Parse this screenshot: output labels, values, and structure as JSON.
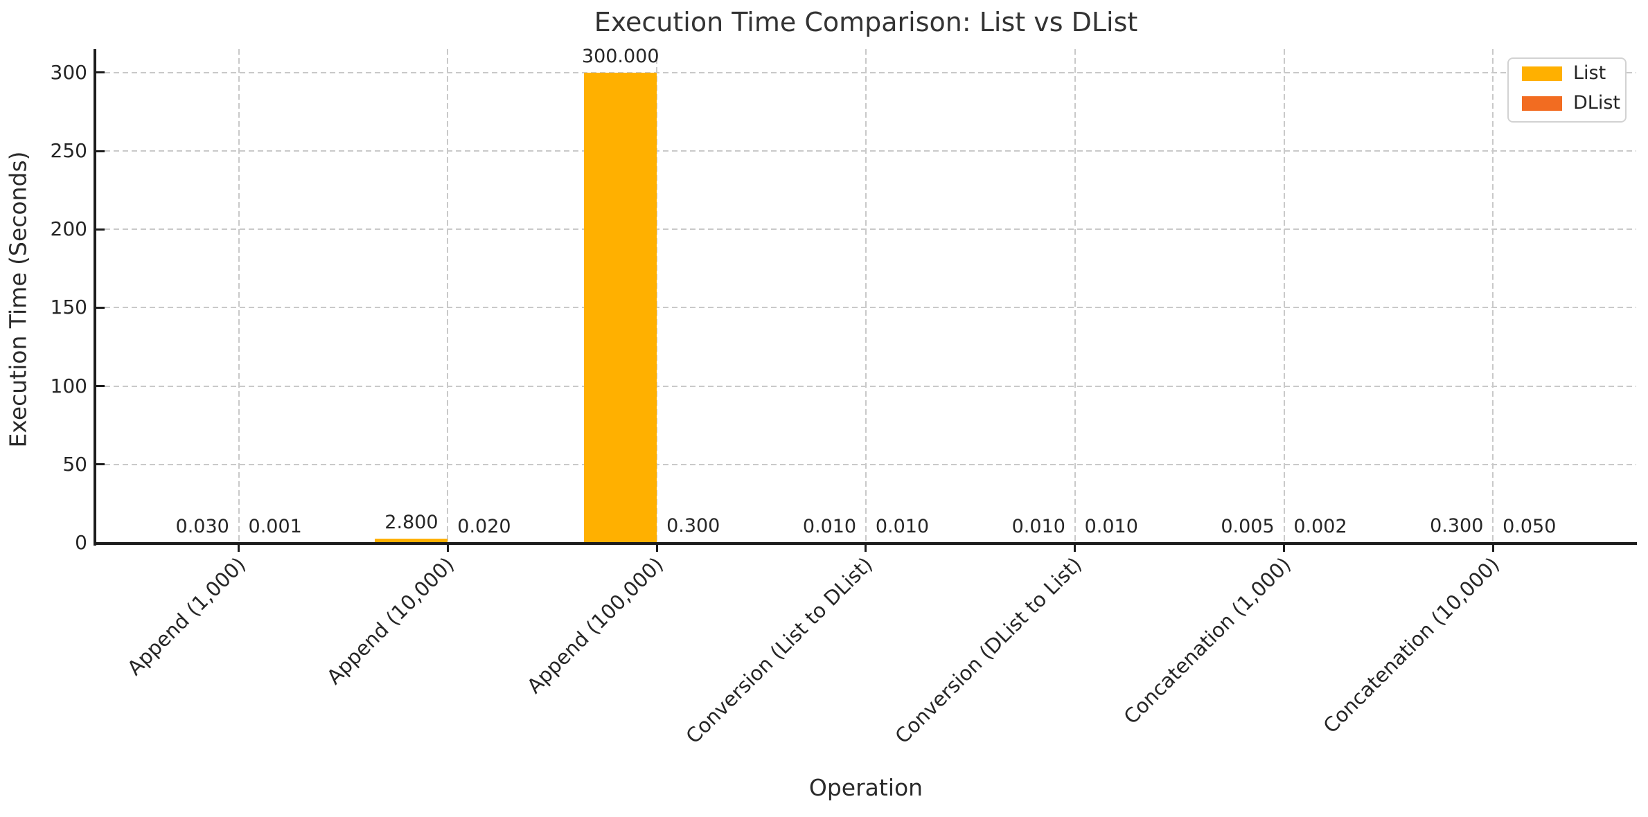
{
  "chart_data": {
    "type": "bar",
    "title": "Execution Time Comparison: List vs DList",
    "xlabel": "Operation",
    "ylabel": "Execution Time (Seconds)",
    "categories": [
      "Append (1,000)",
      "Append (10,000)",
      "Append (100,000)",
      "Conversion (List to DList)",
      "Conversion (DList to List)",
      "Concatenation (1,000)",
      "Concatenation (10,000)"
    ],
    "series": [
      {
        "name": "List",
        "color": "#FFB000",
        "values": [
          0.03,
          2.8,
          300.0,
          0.01,
          0.01,
          0.005,
          0.3
        ]
      },
      {
        "name": "DList",
        "color": "#F26C21",
        "values": [
          0.001,
          0.02,
          0.3,
          0.01,
          0.01,
          0.002,
          0.05
        ]
      }
    ],
    "value_label_decimals": 3,
    "ylim": [
      0,
      315
    ],
    "yticks": [
      0,
      50,
      100,
      150,
      200,
      250,
      300
    ],
    "grid": {
      "style": "dashed",
      "axes": "both",
      "color": "#c9c9c9"
    },
    "legend_position": "upper right",
    "bar_group_width_units": 0.7,
    "text_color": "#262626",
    "axis_color": "#1c1c1c"
  }
}
